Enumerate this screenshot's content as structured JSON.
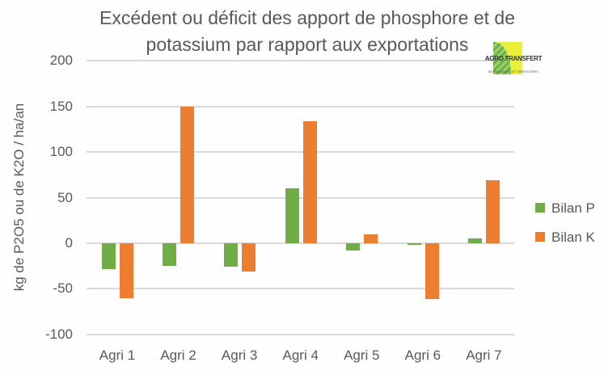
{
  "chart_data": {
    "type": "bar",
    "title": "Excédent ou déficit des apport de phosphore et de potassium par rapport aux exportations",
    "title_lines": [
      "Excédent ou déficit des apport de phosphore et de",
      "potassium par rapport aux exportations"
    ],
    "xlabel": "",
    "ylabel": "kg de P2O5 ou de K2O / ha/an",
    "ylim": [
      -100,
      200
    ],
    "yticks": [
      "200",
      "150",
      "100",
      "50",
      "0",
      "-50",
      "-100"
    ],
    "grid": true,
    "legend_position": "right",
    "categories": [
      "Agri 1",
      "Agri 2",
      "Agri 3",
      "Agri 4",
      "Agri 5",
      "Agri 6",
      "Agri 7"
    ],
    "series": [
      {
        "name": "Bilan P",
        "color": "#70ad47",
        "values": [
          -28,
          -25,
          -26,
          60,
          -8,
          -1,
          5
        ]
      },
      {
        "name": "Bilan K",
        "color": "#ed7d31",
        "values": [
          -60,
          150,
          -31,
          134,
          10,
          -61,
          69
        ]
      }
    ]
  },
  "logo": {
    "name": "AGRO TRANSFERT",
    "subtitle": "RESSOURCES ET TERRITOIRES"
  }
}
